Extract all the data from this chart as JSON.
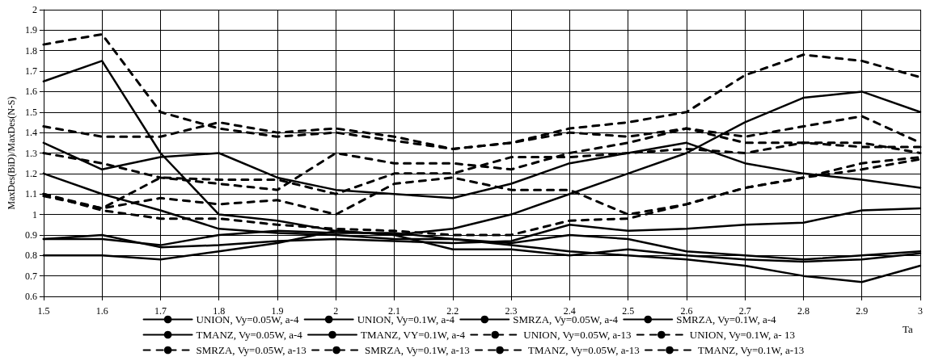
{
  "chart_data": {
    "type": "line",
    "xlabel": "Ta",
    "ylabel": "MaxDes(BiD)/MaxDes(N-S)",
    "x": [
      1.5,
      1.6,
      1.7,
      1.8,
      1.9,
      2.0,
      2.1,
      2.2,
      2.3,
      2.4,
      2.5,
      2.6,
      2.7,
      2.8,
      2.9,
      3.0
    ],
    "xlim": [
      1.5,
      3
    ],
    "xticks": [
      1.5,
      1.6,
      1.7,
      1.8,
      1.9,
      2,
      2.1,
      2.2,
      2.3,
      2.4,
      2.5,
      2.6,
      2.7,
      2.8,
      2.9,
      3
    ],
    "ylim": [
      0.6,
      2
    ],
    "yticks": [
      0.6,
      0.7,
      0.8,
      0.9,
      1,
      1.1,
      1.2,
      1.3,
      1.4,
      1.5,
      1.6,
      1.7,
      1.8,
      1.9,
      2
    ],
    "grid": true,
    "legend": "bottom",
    "marker": "none",
    "series": [
      {
        "name": "UNION, Vy=0.05W, a-4",
        "color": "#000000",
        "line_style": "solid",
        "values": [
          1.65,
          1.75,
          1.3,
          1.0,
          0.97,
          0.92,
          0.9,
          0.93,
          1.0,
          1.1,
          1.2,
          1.3,
          1.45,
          1.57,
          1.6,
          1.5
        ]
      },
      {
        "name": "UNION, Vy=0.1W, a-4",
        "color": "#000000",
        "line_style": "solid",
        "values": [
          0.8,
          0.8,
          0.78,
          0.82,
          0.86,
          0.92,
          0.9,
          0.83,
          0.83,
          0.8,
          0.83,
          0.8,
          0.78,
          0.77,
          0.78,
          0.81
        ]
      },
      {
        "name": "SMRZA, Vy=0.05W, a-4",
        "color": "#000000",
        "line_style": "solid",
        "values": [
          1.35,
          1.22,
          1.28,
          1.3,
          1.18,
          1.12,
          1.1,
          1.08,
          1.15,
          1.25,
          1.3,
          1.35,
          1.25,
          1.2,
          1.17,
          1.13
        ]
      },
      {
        "name": "SMRZA, Vy=0.1W, a-4",
        "color": "#000000",
        "line_style": "solid",
        "values": [
          1.2,
          1.1,
          1.02,
          0.93,
          0.91,
          0.9,
          0.88,
          0.88,
          0.85,
          0.82,
          0.8,
          0.78,
          0.75,
          0.7,
          0.67,
          0.75
        ]
      },
      {
        "name": "TMANZ, Vy=0.05W, a-4",
        "color": "#000000",
        "line_style": "solid",
        "values": [
          0.88,
          0.88,
          0.85,
          0.9,
          0.92,
          0.91,
          0.91,
          0.88,
          0.86,
          0.9,
          0.88,
          0.82,
          0.8,
          0.78,
          0.8,
          0.82
        ]
      },
      {
        "name": "TMANZ, VY=0.1W, a-4",
        "color": "#000000",
        "line_style": "solid",
        "values": [
          0.88,
          0.9,
          0.84,
          0.85,
          0.87,
          0.88,
          0.87,
          0.86,
          0.87,
          0.95,
          0.92,
          0.93,
          0.95,
          0.96,
          1.02,
          1.03
        ]
      },
      {
        "name": "UNION, Vy=0.05W, a-13",
        "color": "#000000",
        "line_style": "dashed",
        "values": [
          1.83,
          1.88,
          1.5,
          1.42,
          1.38,
          1.4,
          1.36,
          1.32,
          1.35,
          1.42,
          1.45,
          1.5,
          1.68,
          1.78,
          1.75,
          1.67
        ]
      },
      {
        "name": "UNION, Vy=0.1W, a- 13",
        "color": "#000000",
        "line_style": "dashed",
        "values": [
          1.43,
          1.38,
          1.38,
          1.45,
          1.4,
          1.42,
          1.38,
          1.32,
          1.35,
          1.4,
          1.38,
          1.42,
          1.35,
          1.35,
          1.33,
          1.33
        ]
      },
      {
        "name": "SMRZA, Vy=0.05W, a-13",
        "color": "#000000",
        "line_style": "dashed",
        "values": [
          1.3,
          1.25,
          1.18,
          1.15,
          1.12,
          1.3,
          1.25,
          1.25,
          1.22,
          1.3,
          1.35,
          1.42,
          1.38,
          1.43,
          1.48,
          1.35
        ]
      },
      {
        "name": "SMRZA, Vy=0.1W, a-13",
        "color": "#000000",
        "line_style": "dashed",
        "values": [
          1.09,
          1.03,
          1.18,
          1.17,
          1.17,
          1.1,
          1.2,
          1.2,
          1.28,
          1.28,
          1.3,
          1.32,
          1.3,
          1.35,
          1.35,
          1.3
        ]
      },
      {
        "name": "TMANZ, Vy=0.05W, a-13",
        "color": "#000000",
        "line_style": "dashed",
        "values": [
          1.1,
          1.03,
          1.08,
          1.05,
          1.07,
          1.0,
          1.15,
          1.18,
          1.12,
          1.12,
          1.0,
          1.05,
          1.13,
          1.18,
          1.25,
          1.28
        ]
      },
      {
        "name": "TMANZ, Vy=0.1W, a-13",
        "color": "#000000",
        "line_style": "dashed",
        "values": [
          1.1,
          1.02,
          0.98,
          0.98,
          0.95,
          0.93,
          0.92,
          0.9,
          0.9,
          0.97,
          0.98,
          1.05,
          1.13,
          1.18,
          1.22,
          1.27
        ]
      }
    ]
  }
}
